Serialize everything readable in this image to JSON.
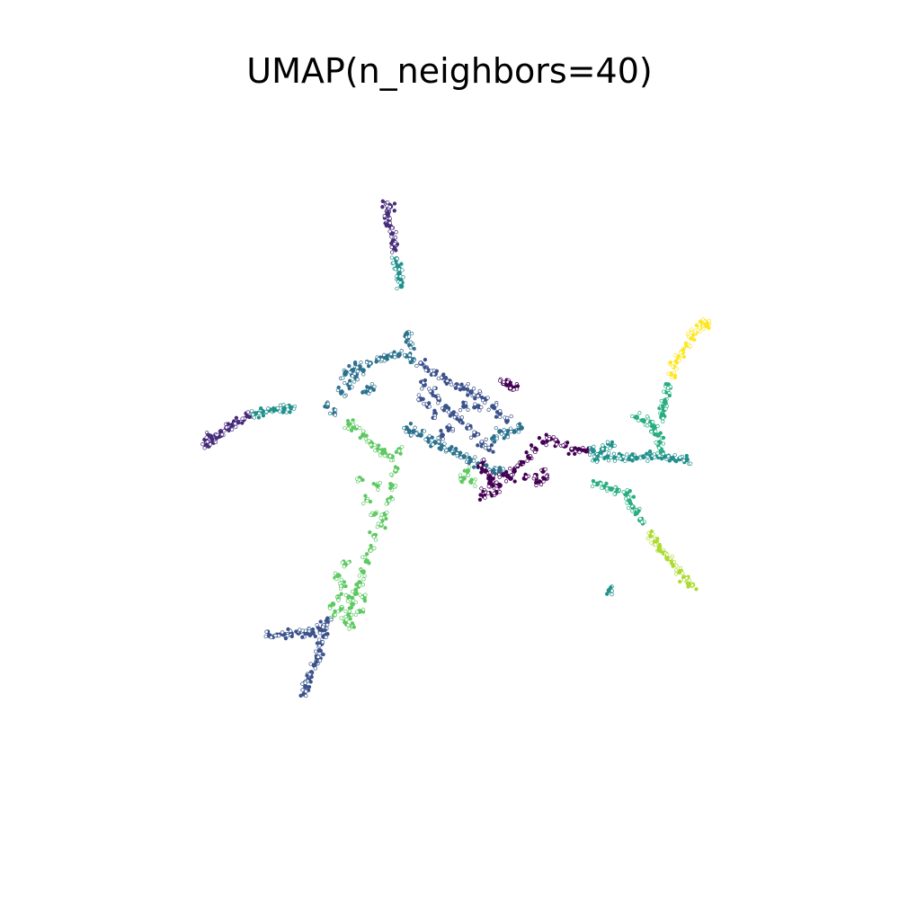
{
  "chart_data": {
    "type": "scatter",
    "title": "UMAP(n_neighbors=40)",
    "xlabel": "",
    "ylabel": "",
    "axes_visible": false,
    "grid": false,
    "legend": "none",
    "xlim": [
      0,
      10
    ],
    "ylim": [
      0,
      10
    ],
    "palette": [
      "#440154",
      "#472c7a",
      "#3b528b",
      "#2c728e",
      "#21918c",
      "#28ae80",
      "#5ec962",
      "#addc30",
      "#fde725"
    ],
    "series": [
      {
        "color": "#472c7a",
        "points": [
          [
            4.12,
            8.42
          ],
          [
            4.15,
            8.35
          ],
          [
            4.18,
            8.38
          ],
          [
            4.14,
            8.28
          ],
          [
            4.16,
            8.2
          ],
          [
            4.18,
            8.1
          ],
          [
            4.2,
            8.0
          ],
          [
            4.22,
            7.9
          ],
          [
            4.23,
            7.8
          ]
        ]
      },
      {
        "color": "#21918c",
        "points": [
          [
            4.26,
            7.65
          ],
          [
            4.28,
            7.55
          ],
          [
            4.3,
            7.45
          ],
          [
            4.32,
            7.35
          ],
          [
            4.33,
            7.27
          ]
        ]
      },
      {
        "color": "#472c7a",
        "points": [
          [
            1.62,
            5.12
          ],
          [
            1.68,
            5.18
          ],
          [
            1.75,
            5.2
          ],
          [
            1.82,
            5.25
          ],
          [
            1.9,
            5.3
          ],
          [
            1.98,
            5.34
          ],
          [
            2.06,
            5.38
          ],
          [
            2.14,
            5.42
          ],
          [
            2.22,
            5.46
          ],
          [
            1.65,
            5.05
          ],
          [
            1.72,
            5.1
          ]
        ]
      },
      {
        "color": "#21918c",
        "points": [
          [
            2.3,
            5.5
          ],
          [
            2.4,
            5.53
          ],
          [
            2.5,
            5.55
          ],
          [
            2.6,
            5.56
          ],
          [
            2.7,
            5.57
          ],
          [
            2.8,
            5.58
          ]
        ]
      },
      {
        "color": "#2c728e",
        "points": [
          [
            3.3,
            5.6
          ],
          [
            3.4,
            5.5
          ],
          [
            3.5,
            5.8
          ],
          [
            3.6,
            5.9
          ],
          [
            3.7,
            6.0
          ],
          [
            3.8,
            6.1
          ],
          [
            3.9,
            6.2
          ],
          [
            4.0,
            6.25
          ],
          [
            4.1,
            6.28
          ],
          [
            4.2,
            6.3
          ],
          [
            4.3,
            6.32
          ],
          [
            4.4,
            6.3
          ],
          [
            4.5,
            6.25
          ],
          [
            3.55,
            6.05
          ],
          [
            3.65,
            6.1
          ],
          [
            3.75,
            6.15
          ],
          [
            3.85,
            5.8
          ],
          [
            3.9,
            5.85
          ],
          [
            4.45,
            6.45
          ],
          [
            4.42,
            6.55
          ],
          [
            4.4,
            6.6
          ]
        ]
      },
      {
        "color": "#3b528b",
        "points": [
          [
            4.6,
            6.2
          ],
          [
            4.7,
            6.1
          ],
          [
            4.8,
            6.05
          ],
          [
            4.9,
            6.0
          ],
          [
            5.0,
            5.95
          ],
          [
            5.1,
            5.9
          ],
          [
            5.2,
            5.85
          ],
          [
            5.3,
            5.8
          ],
          [
            5.4,
            5.75
          ],
          [
            5.5,
            5.7
          ],
          [
            4.65,
            5.9
          ],
          [
            4.75,
            5.8
          ],
          [
            4.85,
            5.7
          ],
          [
            4.95,
            5.6
          ],
          [
            5.05,
            5.5
          ],
          [
            5.15,
            5.4
          ],
          [
            5.25,
            5.3
          ],
          [
            5.35,
            5.2
          ],
          [
            5.45,
            5.1
          ],
          [
            5.55,
            5.0
          ],
          [
            4.6,
            5.7
          ],
          [
            4.7,
            5.6
          ],
          [
            4.8,
            5.5
          ],
          [
            5.6,
            5.6
          ],
          [
            5.7,
            5.5
          ],
          [
            5.8,
            5.4
          ],
          [
            5.4,
            5.6
          ],
          [
            5.2,
            5.6
          ],
          [
            5.0,
            5.3
          ],
          [
            4.9,
            5.2
          ]
        ]
      },
      {
        "color": "#2c728e",
        "points": [
          [
            4.4,
            5.3
          ],
          [
            4.5,
            5.25
          ],
          [
            4.6,
            5.2
          ],
          [
            4.7,
            5.15
          ],
          [
            4.8,
            5.1
          ],
          [
            4.9,
            5.05
          ],
          [
            5.0,
            5.0
          ],
          [
            5.1,
            4.95
          ],
          [
            5.2,
            4.9
          ],
          [
            5.3,
            4.85
          ],
          [
            5.4,
            4.8
          ],
          [
            5.5,
            4.75
          ],
          [
            5.6,
            4.7
          ],
          [
            5.7,
            4.7
          ],
          [
            5.8,
            5.2
          ],
          [
            5.9,
            5.25
          ],
          [
            6.0,
            5.3
          ],
          [
            5.6,
            5.15
          ],
          [
            5.7,
            5.25
          ]
        ]
      },
      {
        "color": "#440154",
        "points": [
          [
            5.75,
            5.92
          ],
          [
            5.8,
            5.9
          ],
          [
            5.85,
            5.88
          ],
          [
            5.9,
            5.85
          ],
          [
            5.45,
            4.8
          ],
          [
            5.5,
            4.7
          ],
          [
            5.55,
            4.6
          ],
          [
            5.6,
            4.5
          ],
          [
            5.65,
            4.4
          ],
          [
            5.7,
            4.5
          ],
          [
            5.5,
            4.4
          ],
          [
            5.48,
            4.35
          ],
          [
            5.6,
            4.6
          ],
          [
            5.75,
            4.65
          ],
          [
            5.85,
            4.6
          ],
          [
            5.9,
            4.7
          ],
          [
            6.0,
            4.8
          ],
          [
            6.1,
            4.9
          ],
          [
            6.2,
            5.0
          ],
          [
            6.3,
            5.1
          ],
          [
            6.4,
            5.15
          ],
          [
            6.5,
            5.1
          ],
          [
            6.6,
            5.05
          ],
          [
            6.7,
            5.0
          ],
          [
            6.8,
            5.0
          ],
          [
            6.9,
            4.98
          ],
          [
            6.2,
            4.6
          ],
          [
            6.3,
            4.7
          ],
          [
            6.35,
            4.6
          ],
          [
            6.25,
            4.55
          ],
          [
            6.05,
            4.6
          ]
        ]
      },
      {
        "color": "#21918c",
        "points": [
          [
            7.0,
            4.98
          ],
          [
            7.1,
            4.95
          ],
          [
            7.2,
            4.9
          ],
          [
            7.3,
            4.88
          ],
          [
            7.4,
            4.87
          ],
          [
            7.5,
            4.87
          ],
          [
            7.6,
            4.88
          ],
          [
            7.7,
            4.9
          ],
          [
            7.8,
            4.92
          ],
          [
            7.9,
            4.92
          ],
          [
            8.0,
            4.9
          ],
          [
            8.1,
            4.88
          ],
          [
            8.2,
            4.87
          ],
          [
            8.3,
            4.86
          ],
          [
            7.05,
            4.85
          ],
          [
            7.15,
            5.02
          ],
          [
            7.25,
            5.05
          ]
        ]
      },
      {
        "color": "#28ae80",
        "points": [
          [
            7.6,
            5.45
          ],
          [
            7.7,
            5.4
          ],
          [
            7.8,
            5.38
          ],
          [
            7.85,
            5.3
          ],
          [
            7.9,
            5.2
          ],
          [
            7.92,
            5.1
          ],
          [
            7.94,
            5.0
          ],
          [
            7.95,
            5.45
          ],
          [
            7.98,
            5.55
          ],
          [
            8.0,
            5.65
          ],
          [
            8.02,
            5.8
          ],
          [
            8.04,
            5.9
          ]
        ]
      },
      {
        "color": "#fde725",
        "points": [
          [
            8.08,
            6.05
          ],
          [
            8.12,
            6.15
          ],
          [
            8.18,
            6.25
          ],
          [
            8.24,
            6.35
          ],
          [
            8.3,
            6.45
          ],
          [
            8.36,
            6.55
          ],
          [
            8.42,
            6.62
          ],
          [
            8.48,
            6.7
          ],
          [
            8.52,
            6.75
          ],
          [
            8.58,
            6.73
          ],
          [
            8.55,
            6.78
          ]
        ]
      },
      {
        "color": "#28ae80",
        "points": [
          [
            7.05,
            4.52
          ],
          [
            7.15,
            4.48
          ],
          [
            7.25,
            4.45
          ],
          [
            7.35,
            4.43
          ],
          [
            7.45,
            4.38
          ],
          [
            7.5,
            4.28
          ],
          [
            7.55,
            4.2
          ],
          [
            7.6,
            4.12
          ],
          [
            7.65,
            4.02
          ]
        ]
      },
      {
        "color": "#addc30",
        "points": [
          [
            7.8,
            3.8
          ],
          [
            7.86,
            3.72
          ],
          [
            7.92,
            3.64
          ],
          [
            7.98,
            3.56
          ],
          [
            8.04,
            3.48
          ],
          [
            8.1,
            3.42
          ],
          [
            8.2,
            3.3
          ],
          [
            8.26,
            3.22
          ],
          [
            8.32,
            3.14
          ],
          [
            8.38,
            3.12
          ]
        ]
      },
      {
        "color": "#21918c",
        "points": [
          [
            7.22,
            3.04
          ]
        ]
      },
      {
        "color": "#5ec962",
        "points": [
          [
            3.6,
            5.35
          ],
          [
            3.7,
            5.3
          ],
          [
            3.8,
            5.2
          ],
          [
            3.9,
            5.1
          ],
          [
            4.0,
            5.0
          ],
          [
            4.1,
            4.95
          ],
          [
            4.2,
            4.9
          ],
          [
            4.3,
            5.0
          ],
          [
            4.25,
            4.7
          ],
          [
            4.2,
            4.5
          ],
          [
            4.15,
            4.3
          ],
          [
            4.1,
            4.1
          ],
          [
            4.05,
            3.95
          ],
          [
            3.95,
            4.1
          ],
          [
            3.85,
            4.3
          ],
          [
            3.75,
            4.6
          ],
          [
            4.0,
            4.5
          ],
          [
            5.2,
            4.6
          ],
          [
            5.25,
            4.7
          ],
          [
            5.3,
            4.55
          ]
        ]
      },
      {
        "color": "#5ec962",
        "points": [
          [
            3.95,
            3.8
          ],
          [
            3.9,
            3.6
          ],
          [
            3.85,
            3.45
          ],
          [
            3.8,
            3.3
          ],
          [
            3.75,
            3.15
          ],
          [
            3.7,
            3.0
          ],
          [
            3.6,
            2.95
          ],
          [
            3.5,
            3.1
          ],
          [
            3.45,
            3.25
          ],
          [
            3.55,
            3.4
          ],
          [
            3.65,
            2.85
          ],
          [
            3.6,
            2.7
          ],
          [
            3.5,
            2.8
          ],
          [
            3.45,
            2.95
          ],
          [
            3.55,
            2.6
          ],
          [
            3.65,
            2.55
          ],
          [
            3.75,
            2.75
          ],
          [
            3.8,
            2.95
          ],
          [
            3.4,
            2.7
          ],
          [
            3.38,
            2.85
          ]
        ]
      },
      {
        "color": "#3b528b",
        "points": [
          [
            3.3,
            2.6
          ],
          [
            3.25,
            2.55
          ],
          [
            3.2,
            2.5
          ],
          [
            3.1,
            2.45
          ],
          [
            3.0,
            2.45
          ],
          [
            2.9,
            2.45
          ],
          [
            2.8,
            2.44
          ],
          [
            2.7,
            2.43
          ],
          [
            2.6,
            2.42
          ],
          [
            2.5,
            2.41
          ],
          [
            3.25,
            2.4
          ],
          [
            3.22,
            2.3
          ],
          [
            3.2,
            2.2
          ],
          [
            3.16,
            2.1
          ],
          [
            3.12,
            2.0
          ],
          [
            3.08,
            1.9
          ],
          [
            3.04,
            1.8
          ],
          [
            3.0,
            1.7
          ],
          [
            2.98,
            1.6
          ]
        ]
      }
    ]
  }
}
